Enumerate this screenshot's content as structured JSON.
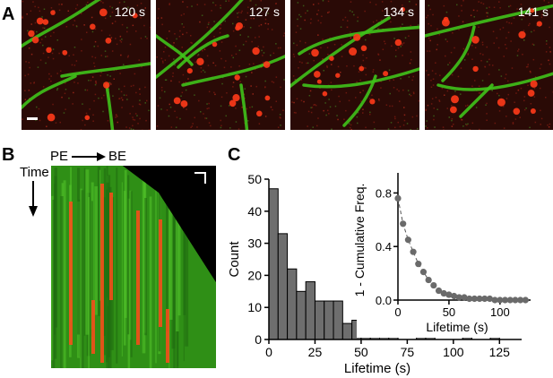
{
  "panels": {
    "a": "A",
    "b": "B",
    "c": "C"
  },
  "frames": [
    {
      "time": "120 s"
    },
    {
      "time": "127 s"
    },
    {
      "time": "134 s"
    },
    {
      "time": "141 s"
    }
  ],
  "kymograph": {
    "pe_label": "PE",
    "be_label": "BE",
    "time_label": "Time"
  },
  "colors": {
    "microtubule": "#3fc21b",
    "puncta": "#ff3a1a",
    "background": "#2a0a06",
    "bars": "#6e6e6e",
    "inset_points": "#6a6a6a"
  },
  "chart_data": [
    {
      "type": "bar",
      "xlabel": "Lifetime (s)",
      "ylabel": "Count",
      "xlim": [
        0,
        137
      ],
      "ylim": [
        0,
        50
      ],
      "xticks": [
        0,
        25,
        50,
        75,
        100,
        125
      ],
      "yticks": [
        0,
        10,
        20,
        30,
        40,
        50
      ],
      "bin_width": 5,
      "bin_starts": [
        0,
        5,
        10,
        15,
        20,
        25,
        30,
        35,
        40,
        45,
        50,
        55,
        60,
        65,
        70,
        75,
        80,
        85,
        90,
        95,
        100,
        105,
        110,
        115,
        120
      ],
      "values": [
        47,
        33,
        22,
        15,
        18,
        12,
        12,
        12,
        5,
        6,
        2,
        2,
        2,
        1,
        0,
        0,
        2,
        1,
        0,
        0,
        0,
        1,
        0,
        0,
        1
      ]
    },
    {
      "type": "scatter",
      "xlabel": "Lifetime (s)",
      "ylabel": "1 - Cumulative Freq.",
      "xlim": [
        0,
        130
      ],
      "ylim": [
        0,
        0.95
      ],
      "xticks": [
        0,
        50,
        100
      ],
      "yticks": [
        0.0,
        0.4,
        0.8
      ],
      "x": [
        0,
        5,
        10,
        15,
        20,
        25,
        30,
        35,
        40,
        45,
        50,
        55,
        60,
        65,
        70,
        75,
        80,
        85,
        90,
        95,
        100,
        105,
        110,
        115,
        120,
        125
      ],
      "y": [
        0.76,
        0.57,
        0.45,
        0.36,
        0.27,
        0.21,
        0.15,
        0.11,
        0.07,
        0.05,
        0.04,
        0.03,
        0.02,
        0.02,
        0.01,
        0.01,
        0.01,
        0.01,
        0.01,
        0.0,
        0.0,
        0.0,
        0.0,
        0.0,
        0.0,
        0.0
      ]
    }
  ]
}
